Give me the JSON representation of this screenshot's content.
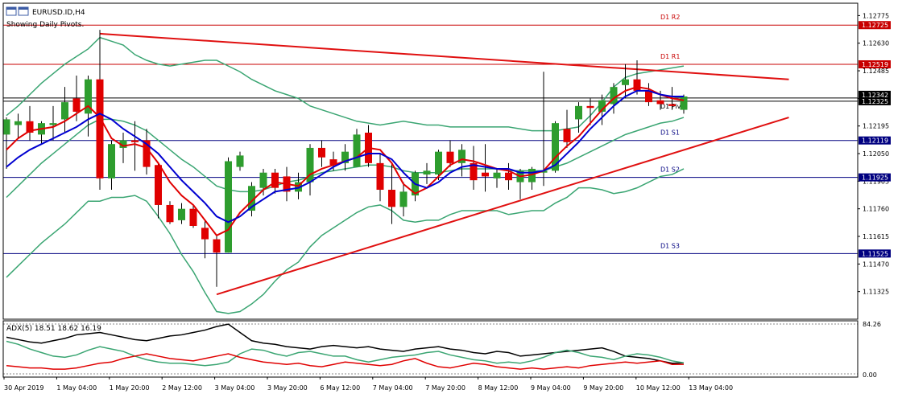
{
  "header": {
    "symbol": "EURUSD.ID,H4",
    "subtitle": "Showing Daily Pivots."
  },
  "indicator": {
    "label": "ADX(5) 18.51 18.62 16.19",
    "top_tick": "84.26",
    "bottom_tick": "0.00"
  },
  "colors": {
    "bull": "#2e9d2e",
    "bear": "#e00000",
    "ma_red": "#e00000",
    "ma_blue": "#0000d0",
    "bollinger": "#3aa572",
    "resistance": "#c80000",
    "support": "#000080",
    "trendline": "#e01010"
  },
  "chart_data": {
    "type": "candlestick",
    "title": "EURUSD.ID,H4",
    "ylim": [
      1.1118,
      1.1284
    ],
    "y_ticks": [
      "1.12775",
      "1.12630",
      "1.12485",
      "1.12340",
      "1.12195",
      "1.12050",
      "1.11905",
      "1.11760",
      "1.11615",
      "1.11470",
      "1.11325"
    ],
    "x_ticks": [
      "30 Apr 2019",
      "1 May 04:00",
      "1 May 20:00",
      "2 May 12:00",
      "3 May 04:00",
      "3 May 20:00",
      "6 May 12:00",
      "7 May 04:00",
      "7 May 20:00",
      "8 May 12:00",
      "9 May 04:00",
      "9 May 20:00",
      "10 May 12:00",
      "13 May 04:00"
    ],
    "pivots": [
      {
        "name": "D1 R2",
        "value": 1.12725,
        "tag": "1.12725",
        "type": "resistance"
      },
      {
        "name": "D1 R1",
        "value": 1.12519,
        "tag": "1.12519",
        "type": "resistance"
      },
      {
        "name": "D1 Pivot",
        "value": 1.12325,
        "tag": "1.12325",
        "type": "pivot"
      },
      {
        "name": "D1 S1",
        "value": 1.12119,
        "tag": "1.12119",
        "type": "support"
      },
      {
        "name": "D1 S2",
        "value": 1.11925,
        "tag": "1.11925",
        "type": "support"
      },
      {
        "name": "D1 S3",
        "value": 1.11525,
        "tag": "1.11525",
        "type": "support"
      }
    ],
    "current_price_tag": "1.12342",
    "current_price": 1.12342,
    "candles": [
      {
        "o": 1.1215,
        "h": 1.1224,
        "l": 1.1197,
        "c": 1.1223
      },
      {
        "o": 1.122,
        "h": 1.1226,
        "l": 1.1213,
        "c": 1.1222
      },
      {
        "o": 1.1222,
        "h": 1.123,
        "l": 1.1212,
        "c": 1.1216
      },
      {
        "o": 1.1215,
        "h": 1.1222,
        "l": 1.121,
        "c": 1.1221
      },
      {
        "o": 1.122,
        "h": 1.123,
        "l": 1.1212,
        "c": 1.1221
      },
      {
        "o": 1.1223,
        "h": 1.124,
        "l": 1.1216,
        "c": 1.1232
      },
      {
        "o": 1.1234,
        "h": 1.1246,
        "l": 1.1222,
        "c": 1.1227
      },
      {
        "o": 1.1226,
        "h": 1.1246,
        "l": 1.1214,
        "c": 1.1244
      },
      {
        "o": 1.1244,
        "h": 1.127,
        "l": 1.1186,
        "c": 1.1192
      },
      {
        "o": 1.1192,
        "h": 1.1212,
        "l": 1.1186,
        "c": 1.121
      },
      {
        "o": 1.1208,
        "h": 1.1216,
        "l": 1.12,
        "c": 1.1212
      },
      {
        "o": 1.1212,
        "h": 1.1222,
        "l": 1.1196,
        "c": 1.1211
      },
      {
        "o": 1.1212,
        "h": 1.1218,
        "l": 1.1194,
        "c": 1.1198
      },
      {
        "o": 1.1199,
        "h": 1.12,
        "l": 1.1171,
        "c": 1.1178
      },
      {
        "o": 1.1178,
        "h": 1.118,
        "l": 1.1168,
        "c": 1.1169
      },
      {
        "o": 1.117,
        "h": 1.1179,
        "l": 1.1168,
        "c": 1.1176
      },
      {
        "o": 1.1176,
        "h": 1.1178,
        "l": 1.1166,
        "c": 1.1167
      },
      {
        "o": 1.1166,
        "h": 1.117,
        "l": 1.115,
        "c": 1.116
      },
      {
        "o": 1.116,
        "h": 1.1162,
        "l": 1.1135,
        "c": 1.1153
      },
      {
        "o": 1.1153,
        "h": 1.1203,
        "l": 1.1153,
        "c": 1.1201
      },
      {
        "o": 1.1198,
        "h": 1.1206,
        "l": 1.1196,
        "c": 1.1204
      },
      {
        "o": 1.1175,
        "h": 1.119,
        "l": 1.1172,
        "c": 1.1188
      },
      {
        "o": 1.1187,
        "h": 1.1197,
        "l": 1.1183,
        "c": 1.1195
      },
      {
        "o": 1.1195,
        "h": 1.1197,
        "l": 1.1184,
        "c": 1.1187
      },
      {
        "o": 1.1193,
        "h": 1.1198,
        "l": 1.118,
        "c": 1.1185
      },
      {
        "o": 1.1185,
        "h": 1.1195,
        "l": 1.1181,
        "c": 1.119
      },
      {
        "o": 1.119,
        "h": 1.121,
        "l": 1.1183,
        "c": 1.1208
      },
      {
        "o": 1.1208,
        "h": 1.1212,
        "l": 1.1198,
        "c": 1.1203
      },
      {
        "o": 1.1202,
        "h": 1.1206,
        "l": 1.1196,
        "c": 1.1199
      },
      {
        "o": 1.12,
        "h": 1.121,
        "l": 1.1196,
        "c": 1.1206
      },
      {
        "o": 1.1198,
        "h": 1.1218,
        "l": 1.1198,
        "c": 1.1215
      },
      {
        "o": 1.1216,
        "h": 1.122,
        "l": 1.1198,
        "c": 1.12
      },
      {
        "o": 1.12,
        "h": 1.1205,
        "l": 1.118,
        "c": 1.1186
      },
      {
        "o": 1.1186,
        "h": 1.12,
        "l": 1.1168,
        "c": 1.1177
      },
      {
        "o": 1.1177,
        "h": 1.119,
        "l": 1.1172,
        "c": 1.1185
      },
      {
        "o": 1.1183,
        "h": 1.1196,
        "l": 1.118,
        "c": 1.1195
      },
      {
        "o": 1.1194,
        "h": 1.12,
        "l": 1.1189,
        "c": 1.1196
      },
      {
        "o": 1.1194,
        "h": 1.1207,
        "l": 1.1191,
        "c": 1.1206
      },
      {
        "o": 1.1206,
        "h": 1.1212,
        "l": 1.1198,
        "c": 1.12
      },
      {
        "o": 1.12,
        "h": 1.121,
        "l": 1.1193,
        "c": 1.1207
      },
      {
        "o": 1.12,
        "h": 1.1209,
        "l": 1.1186,
        "c": 1.1191
      },
      {
        "o": 1.1195,
        "h": 1.121,
        "l": 1.1185,
        "c": 1.1193
      },
      {
        "o": 1.1192,
        "h": 1.1197,
        "l": 1.1187,
        "c": 1.1195
      },
      {
        "o": 1.1195,
        "h": 1.12,
        "l": 1.1186,
        "c": 1.1191
      },
      {
        "o": 1.119,
        "h": 1.1197,
        "l": 1.1181,
        "c": 1.1196
      },
      {
        "o": 1.119,
        "h": 1.1198,
        "l": 1.1186,
        "c": 1.1197
      },
      {
        "o": 1.1195,
        "h": 1.1248,
        "l": 1.1188,
        "c": 1.1196
      },
      {
        "o": 1.1196,
        "h": 1.1222,
        "l": 1.1195,
        "c": 1.1221
      },
      {
        "o": 1.1218,
        "h": 1.1228,
        "l": 1.1208,
        "c": 1.1211
      },
      {
        "o": 1.1223,
        "h": 1.1232,
        "l": 1.1216,
        "c": 1.123
      },
      {
        "o": 1.123,
        "h": 1.1234,
        "l": 1.122,
        "c": 1.1229
      },
      {
        "o": 1.1227,
        "h": 1.1236,
        "l": 1.122,
        "c": 1.1233
      },
      {
        "o": 1.1231,
        "h": 1.1242,
        "l": 1.1226,
        "c": 1.124
      },
      {
        "o": 1.1241,
        "h": 1.1252,
        "l": 1.1234,
        "c": 1.1244
      },
      {
        "o": 1.1244,
        "h": 1.1254,
        "l": 1.1236,
        "c": 1.1238
      },
      {
        "o": 1.1238,
        "h": 1.1242,
        "l": 1.123,
        "c": 1.1232
      },
      {
        "o": 1.1233,
        "h": 1.1238,
        "l": 1.1228,
        "c": 1.1231
      },
      {
        "o": 1.1231,
        "h": 1.124,
        "l": 1.1228,
        "c": 1.123
      },
      {
        "o": 1.1228,
        "h": 1.1236,
        "l": 1.1226,
        "c": 1.1235
      }
    ],
    "series": [
      {
        "name": "MA red",
        "values": [
          1.1207,
          1.1213,
          1.1217,
          1.1218,
          1.1219,
          1.1222,
          1.1226,
          1.123,
          1.1224,
          1.1213,
          1.1209,
          1.121,
          1.1208,
          1.12,
          1.119,
          1.1183,
          1.1178,
          1.117,
          1.1162,
          1.1165,
          1.1174,
          1.118,
          1.1186,
          1.119,
          1.1189,
          1.1188,
          1.1194,
          1.1197,
          1.1199,
          1.1201,
          1.1203,
          1.1208,
          1.1207,
          1.12,
          1.1189,
          1.1184,
          1.1187,
          1.1193,
          1.1199,
          1.1202,
          1.1201,
          1.1199,
          1.1197,
          1.1196,
          1.1193,
          1.1194,
          1.1196,
          1.1203,
          1.1209,
          1.1214,
          1.1221,
          1.1228,
          1.1234,
          1.1238,
          1.124,
          1.1239,
          1.1236,
          1.1234,
          1.1233
        ]
      },
      {
        "name": "MA blue",
        "values": [
          1.1198,
          1.1203,
          1.1207,
          1.121,
          1.1213,
          1.1216,
          1.1219,
          1.1223,
          1.1226,
          1.1223,
          1.1218,
          1.1214,
          1.121,
          1.1205,
          1.1198,
          1.1191,
          1.1185,
          1.1179,
          1.1172,
          1.1169,
          1.1172,
          1.1177,
          1.1181,
          1.1185,
          1.1186,
          1.1187,
          1.119,
          1.1194,
          1.1198,
          1.1201,
          1.1203,
          1.1205,
          1.1205,
          1.1202,
          1.1195,
          1.1189,
          1.1187,
          1.119,
          1.1195,
          1.1198,
          1.1199,
          1.1198,
          1.1197,
          1.1197,
          1.1195,
          1.1195,
          1.1196,
          1.1199,
          1.1205,
          1.1211,
          1.1218,
          1.1224,
          1.123,
          1.1235,
          1.1238,
          1.1238,
          1.1236,
          1.1235,
          1.1235
        ]
      },
      {
        "name": "Bollinger upper",
        "values": [
          1.1225,
          1.123,
          1.1236,
          1.1242,
          1.1247,
          1.1252,
          1.1256,
          1.126,
          1.1266,
          1.1264,
          1.1262,
          1.1257,
          1.1254,
          1.1252,
          1.1251,
          1.1252,
          1.1253,
          1.1254,
          1.1254,
          1.1251,
          1.1248,
          1.1244,
          1.1241,
          1.1238,
          1.1236,
          1.1234,
          1.123,
          1.1228,
          1.1226,
          1.1224,
          1.1222,
          1.1221,
          1.122,
          1.1221,
          1.1222,
          1.1221,
          1.122,
          1.122,
          1.1219,
          1.1219,
          1.1219,
          1.1219,
          1.1219,
          1.1219,
          1.1218,
          1.1217,
          1.1217,
          1.1217,
          1.1218,
          1.1219,
          1.1225,
          1.1232,
          1.124,
          1.1245,
          1.1247,
          1.1248,
          1.1249,
          1.125,
          1.1251
        ]
      },
      {
        "name": "Bollinger middle",
        "values": [
          1.1182,
          1.1188,
          1.1194,
          1.12,
          1.1205,
          1.121,
          1.1215,
          1.122,
          1.1223,
          1.1223,
          1.1222,
          1.122,
          1.1217,
          1.1212,
          1.1207,
          1.1202,
          1.1198,
          1.1193,
          1.1188,
          1.1186,
          1.1185,
          1.1185,
          1.1186,
          1.1188,
          1.119,
          1.1191,
          1.1193,
          1.1195,
          1.1196,
          1.1197,
          1.1198,
          1.1199,
          1.1199,
          1.1198,
          1.1196,
          1.1195,
          1.1195,
          1.1195,
          1.1196,
          1.1197,
          1.1197,
          1.1197,
          1.1197,
          1.1196,
          1.1196,
          1.1196,
          1.1196,
          1.1198,
          1.12,
          1.1203,
          1.1206,
          1.1209,
          1.1212,
          1.1215,
          1.1217,
          1.1219,
          1.1221,
          1.1222,
          1.1224
        ]
      },
      {
        "name": "Bollinger lower",
        "values": [
          1.114,
          1.1146,
          1.1152,
          1.1158,
          1.1163,
          1.1168,
          1.1174,
          1.118,
          1.118,
          1.1182,
          1.1182,
          1.1183,
          1.118,
          1.1172,
          1.1163,
          1.1152,
          1.1143,
          1.1132,
          1.1122,
          1.1121,
          1.1122,
          1.1126,
          1.1131,
          1.1138,
          1.1144,
          1.1148,
          1.1156,
          1.1162,
          1.1166,
          1.117,
          1.1174,
          1.1177,
          1.1178,
          1.1175,
          1.117,
          1.1169,
          1.117,
          1.117,
          1.1173,
          1.1175,
          1.1175,
          1.1175,
          1.1175,
          1.1173,
          1.1174,
          1.1175,
          1.1175,
          1.1179,
          1.1182,
          1.1187,
          1.1187,
          1.1186,
          1.1184,
          1.1185,
          1.1187,
          1.119,
          1.1193,
          1.1194,
          1.1197
        ]
      }
    ],
    "trendlines": [
      {
        "name": "resistance trendline",
        "from": [
          8,
          1.1268
        ],
        "to": [
          67,
          1.1244
        ]
      },
      {
        "name": "support trendline",
        "from": [
          18,
          1.1131
        ],
        "to": [
          67,
          1.1224
        ]
      }
    ],
    "adx": {
      "ylim": [
        0,
        84.26
      ],
      "series": [
        {
          "name": "ADX",
          "values": [
            62,
            58,
            54,
            52,
            56,
            60,
            66,
            68,
            70,
            66,
            62,
            58,
            56,
            60,
            64,
            66,
            70,
            74,
            80,
            84,
            70,
            56,
            52,
            50,
            46,
            44,
            42,
            46,
            48,
            46,
            44,
            46,
            42,
            40,
            38,
            42,
            44,
            46,
            42,
            40,
            36,
            34,
            38,
            36,
            30,
            32,
            34,
            36,
            38,
            40,
            42,
            44,
            38,
            30,
            28,
            26,
            22,
            18,
            18.51
          ]
        },
        {
          "name": "+DI",
          "values": [
            55,
            50,
            42,
            36,
            30,
            28,
            32,
            40,
            46,
            42,
            38,
            30,
            24,
            20,
            18,
            18,
            16,
            14,
            16,
            20,
            34,
            42,
            40,
            34,
            30,
            36,
            38,
            34,
            30,
            30,
            24,
            20,
            24,
            28,
            30,
            32,
            36,
            38,
            32,
            28,
            24,
            22,
            18,
            20,
            18,
            22,
            28,
            36,
            40,
            36,
            30,
            28,
            24,
            30,
            34,
            32,
            28,
            22,
            18.62
          ]
        },
        {
          "name": "-DI",
          "values": [
            14,
            12,
            10,
            10,
            8,
            8,
            10,
            14,
            18,
            20,
            26,
            30,
            34,
            30,
            26,
            24,
            22,
            26,
            30,
            34,
            28,
            24,
            20,
            18,
            16,
            18,
            14,
            12,
            16,
            20,
            18,
            16,
            14,
            16,
            22,
            26,
            18,
            12,
            10,
            14,
            18,
            16,
            12,
            10,
            8,
            10,
            8,
            10,
            12,
            10,
            14,
            16,
            18,
            20,
            18,
            20,
            22,
            16,
            16.19
          ]
        }
      ]
    }
  }
}
